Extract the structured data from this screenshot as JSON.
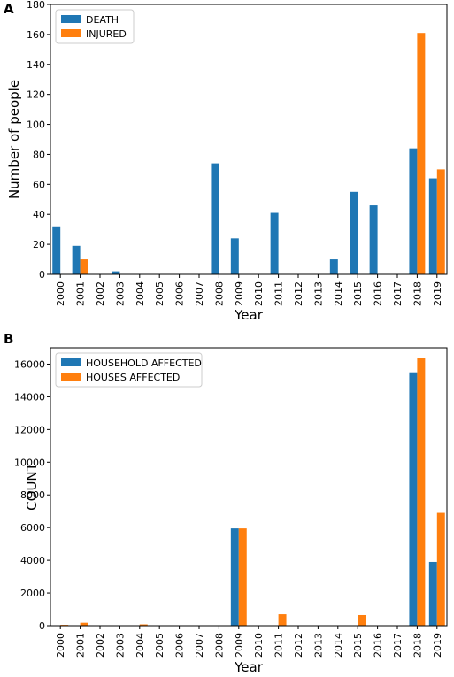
{
  "chart_data": [
    {
      "panel_label": "A",
      "type": "bar",
      "categories": [
        "2000",
        "2001",
        "2002",
        "2003",
        "2004",
        "2005",
        "2006",
        "2007",
        "2008",
        "2009",
        "2010",
        "2011",
        "2012",
        "2013",
        "2014",
        "2015",
        "2016",
        "2017",
        "2018",
        "2019"
      ],
      "series": [
        {
          "name": "DEATH",
          "color": "#1f77b4",
          "values": [
            32,
            19,
            0,
            2,
            0,
            0,
            0,
            0,
            74,
            24,
            0,
            41,
            0,
            0,
            10,
            55,
            46,
            0,
            84,
            64
          ]
        },
        {
          "name": "INJURED",
          "color": "#ff7f0e",
          "values": [
            0,
            10,
            0,
            0,
            0,
            0,
            0,
            0,
            0,
            0,
            0,
            0,
            0,
            0,
            0,
            0,
            0,
            0,
            161,
            70
          ]
        }
      ],
      "xlabel": "Year",
      "ylabel": "Number of people",
      "ylim": [
        0,
        180
      ],
      "yticks": [
        0,
        20,
        40,
        60,
        80,
        100,
        120,
        140,
        160,
        180
      ],
      "legend_position": "top-left"
    },
    {
      "panel_label": "B",
      "type": "bar",
      "categories": [
        "2000",
        "2001",
        "2002",
        "2003",
        "2004",
        "2005",
        "2006",
        "2007",
        "2008",
        "2009",
        "2010",
        "2011",
        "2012",
        "2013",
        "2014",
        "2015",
        "2016",
        "2017",
        "2018",
        "2019"
      ],
      "series": [
        {
          "name": "HOUSEHOLD AFFECTED",
          "color": "#1f77b4",
          "values": [
            0,
            0,
            0,
            0,
            0,
            0,
            0,
            0,
            0,
            5950,
            0,
            0,
            0,
            0,
            0,
            0,
            0,
            0,
            15500,
            3900
          ]
        },
        {
          "name": "HOUSES AFFECTED",
          "color": "#ff7f0e",
          "values": [
            50,
            180,
            0,
            0,
            80,
            0,
            0,
            0,
            0,
            5950,
            0,
            700,
            0,
            0,
            0,
            650,
            0,
            0,
            16350,
            6900
          ]
        }
      ],
      "xlabel": "Year",
      "ylabel": "COUNT",
      "ylim": [
        0,
        17000
      ],
      "yticks": [
        0,
        2000,
        4000,
        6000,
        8000,
        10000,
        12000,
        14000,
        16000
      ],
      "legend_position": "top-left"
    }
  ]
}
